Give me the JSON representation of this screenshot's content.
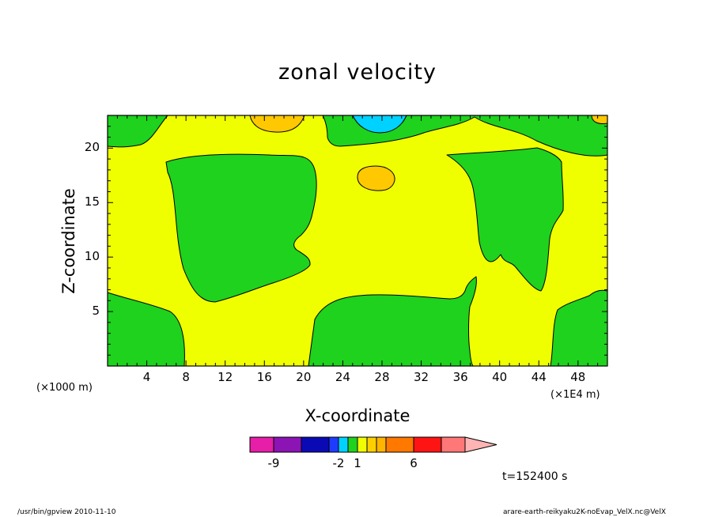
{
  "chart_data": {
    "type": "contour",
    "title": "zonal velocity",
    "xlabel": "X-coordinate",
    "ylabel": "Z-coordinate",
    "x_scale_left": "(×1000 m)",
    "x_scale_right": "(×1E4 m)",
    "xlim": [
      0,
      51
    ],
    "ylim": [
      0,
      23
    ],
    "x_ticks": [
      4,
      8,
      12,
      16,
      20,
      24,
      28,
      32,
      36,
      40,
      44,
      48
    ],
    "y_ticks": [
      5,
      10,
      15,
      20
    ],
    "colorbar": {
      "colors": [
        "#e61ea8",
        "#8c14b4",
        "#0a0ab4",
        "#1e3cff",
        "#00d2ff",
        "#1ed21e",
        "#f0ff00",
        "#ffd000",
        "#ffb400",
        "#ff7800",
        "#ff1414",
        "#ff7878",
        "#ffb4b4"
      ],
      "tick_labels": [
        {
          "label": "-9",
          "index": 1
        },
        {
          "label": "-2",
          "index": 4
        },
        {
          "label": "1",
          "index": 6
        },
        {
          "label": "6",
          "index": 10
        }
      ]
    },
    "regions": {
      "background": "#f0ff00",
      "green": "#1ed21e",
      "orange": "#ffc800",
      "cyan": "#00d2ff"
    },
    "time_label": "t=152400 s"
  },
  "footer": {
    "left": "/usr/bin/gpview   2010-11-10",
    "right": "arare-earth-reikyaku2K-noEvap_VelX.nc@VelX"
  }
}
